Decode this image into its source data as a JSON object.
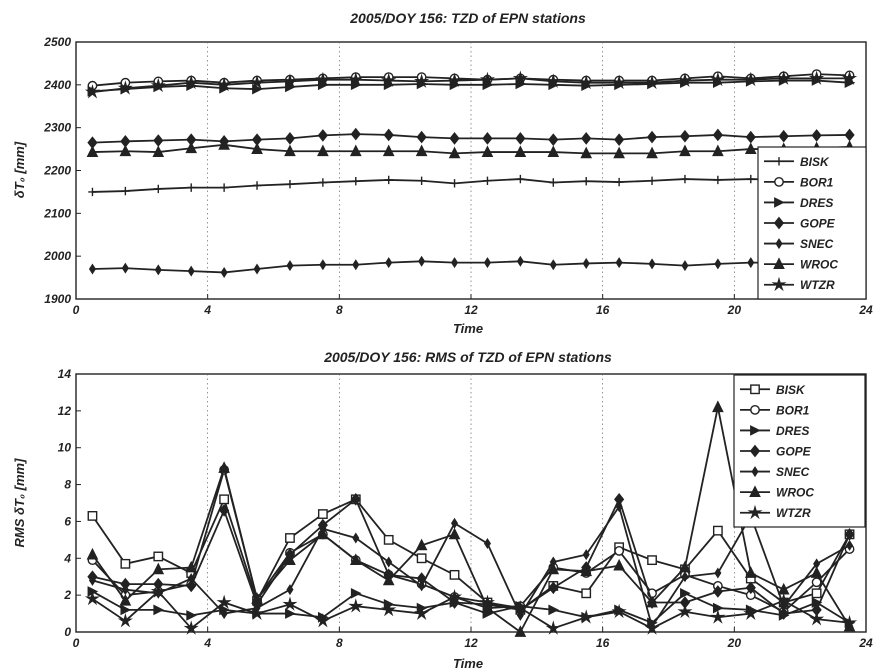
{
  "chart_data": [
    {
      "type": "line",
      "title": "2005/DOY 156: TZD of EPN stations",
      "xlabel": "Time",
      "ylabel": "δT₀ [mm]",
      "xlim": [
        0,
        24
      ],
      "ylim": [
        1900,
        2500
      ],
      "xticks": [
        "0",
        "4",
        "8",
        "12",
        "16",
        "20",
        "24"
      ],
      "yticks": [
        "1900",
        "2000",
        "2100",
        "2200",
        "2300",
        "2400",
        "2500"
      ],
      "grid": "vertical",
      "legend": "right",
      "x": [
        0.5,
        1.5,
        2.5,
        3.5,
        4.5,
        5.5,
        6.5,
        7.5,
        8.5,
        9.5,
        10.5,
        11.5,
        12.5,
        13.5,
        14.5,
        15.5,
        16.5,
        17.5,
        18.5,
        19.5,
        20.5,
        21.5,
        22.5,
        23.5
      ],
      "series": [
        {
          "name": "BISK",
          "marker": "plus",
          "values": [
            2150,
            2152,
            2157,
            2160,
            2160,
            2165,
            2168,
            2172,
            2175,
            2178,
            2176,
            2170,
            2176,
            2180,
            2172,
            2175,
            2173,
            2176,
            2180,
            2178,
            2180,
            2178,
            2180,
            2180
          ]
        },
        {
          "name": "BOR1",
          "marker": "circle",
          "values": [
            2398,
            2405,
            2408,
            2410,
            2405,
            2410,
            2412,
            2415,
            2418,
            2418,
            2418,
            2415,
            2412,
            2415,
            2412,
            2410,
            2410,
            2410,
            2415,
            2420,
            2415,
            2420,
            2425,
            2422
          ]
        },
        {
          "name": "DRES",
          "marker": "triangle-right",
          "values": [
            2385,
            2390,
            2395,
            2398,
            2392,
            2390,
            2395,
            2400,
            2400,
            2400,
            2402,
            2400,
            2400,
            2402,
            2400,
            2398,
            2400,
            2402,
            2405,
            2405,
            2408,
            2410,
            2410,
            2405
          ]
        },
        {
          "name": "GOPE",
          "marker": "diamond",
          "values": [
            2265,
            2268,
            2270,
            2272,
            2268,
            2272,
            2275,
            2282,
            2285,
            2283,
            2278,
            2275,
            2275,
            2275,
            2272,
            2275,
            2272,
            2278,
            2280,
            2283,
            2278,
            2280,
            2282,
            2283
          ]
        },
        {
          "name": "SNEC",
          "marker": "diamond-small",
          "values": [
            1970,
            1972,
            1968,
            1965,
            1962,
            1970,
            1978,
            1980,
            1980,
            1985,
            1988,
            1985,
            1985,
            1988,
            1980,
            1983,
            1985,
            1982,
            1978,
            1982,
            1985,
            1985,
            1985,
            1985
          ]
        },
        {
          "name": "WROC",
          "marker": "triangle-up",
          "values": [
            2243,
            2245,
            2243,
            2252,
            2260,
            2250,
            2245,
            2245,
            2245,
            2245,
            2245,
            2240,
            2243,
            2243,
            2243,
            2240,
            2240,
            2240,
            2245,
            2245,
            2250,
            2250,
            2252,
            2255
          ]
        },
        {
          "name": "WTZR",
          "marker": "star",
          "values": [
            2383,
            2392,
            2398,
            2405,
            2400,
            2405,
            2408,
            2412,
            2412,
            2410,
            2408,
            2410,
            2412,
            2415,
            2408,
            2405,
            2405,
            2405,
            2410,
            2412,
            2412,
            2415,
            2415,
            2415
          ]
        }
      ]
    },
    {
      "type": "line",
      "title": "2005/DOY 156: RMS of TZD of EPN stations",
      "xlabel": "Time",
      "ylabel": "RMS δT₀ [mm]",
      "xlim": [
        0,
        24
      ],
      "ylim": [
        0,
        14
      ],
      "xticks": [
        "0",
        "4",
        "8",
        "12",
        "16",
        "20",
        "24"
      ],
      "yticks": [
        "0",
        "2",
        "4",
        "6",
        "8",
        "10",
        "12",
        "14"
      ],
      "grid": "vertical",
      "legend": "top-right",
      "x": [
        0.5,
        1.5,
        2.5,
        3.5,
        4.5,
        5.5,
        6.5,
        7.5,
        8.5,
        9.5,
        10.5,
        11.5,
        12.5,
        13.5,
        14.5,
        15.5,
        16.5,
        17.5,
        18.5,
        19.5,
        20.5,
        21.5,
        22.5,
        23.5
      ],
      "series": [
        {
          "name": "BISK",
          "marker": "square",
          "values": [
            6.3,
            3.7,
            4.1,
            3.2,
            7.2,
            1.7,
            5.1,
            6.4,
            7.2,
            5.0,
            4.0,
            3.1,
            1.6,
            1.2,
            2.5,
            2.1,
            4.6,
            3.9,
            3.4,
            5.5,
            2.9,
            1.6,
            2.1,
            5.3
          ]
        },
        {
          "name": "BOR1",
          "marker": "circle",
          "values": [
            3.9,
            2.0,
            2.2,
            2.6,
            8.8,
            1.8,
            4.3,
            5.3,
            3.9,
            3.1,
            2.6,
            1.9,
            1.3,
            1.4,
            3.5,
            3.2,
            4.4,
            2.1,
            3.1,
            2.5,
            2.0,
            1.1,
            2.7,
            4.5
          ]
        },
        {
          "name": "DRES",
          "marker": "triangle-right",
          "values": [
            2.2,
            1.2,
            1.2,
            0.9,
            1.2,
            1.0,
            1.0,
            0.8,
            2.1,
            1.5,
            1.3,
            1.6,
            1.0,
            1.4,
            1.2,
            0.8,
            1.2,
            0.5,
            2.1,
            1.3,
            1.2,
            0.9,
            1.6,
            0.5
          ]
        },
        {
          "name": "GOPE",
          "marker": "diamond",
          "values": [
            3.0,
            2.6,
            2.6,
            2.5,
            6.6,
            1.5,
            4.2,
            5.8,
            7.2,
            3.1,
            2.9,
            1.6,
            1.5,
            1.2,
            2.4,
            3.5,
            7.2,
            1.6,
            1.6,
            2.2,
            2.4,
            1.0,
            1.2,
            5.3
          ]
        },
        {
          "name": "SNEC",
          "marker": "diamond-small",
          "values": [
            2.8,
            2.3,
            2.1,
            2.9,
            1.0,
            1.3,
            2.3,
            5.6,
            5.1,
            3.8,
            2.5,
            5.9,
            4.8,
            0.9,
            3.8,
            4.2,
            6.8,
            0.3,
            3.0,
            3.2,
            6.3,
            1.4,
            3.7,
            4.7
          ]
        },
        {
          "name": "WROC",
          "marker": "triangle-up",
          "values": [
            4.2,
            1.7,
            3.4,
            3.5,
            8.9,
            1.8,
            3.9,
            5.3,
            3.9,
            2.8,
            4.7,
            5.3,
            1.3,
            0.0,
            3.4,
            3.3,
            3.6,
            1.6,
            3.5,
            12.2,
            3.2,
            2.3,
            3.2,
            0.3
          ]
        },
        {
          "name": "WTZR",
          "marker": "star",
          "values": [
            1.8,
            0.6,
            2.2,
            0.2,
            1.6,
            1.0,
            1.5,
            0.6,
            1.4,
            1.2,
            1.0,
            1.9,
            1.6,
            1.3,
            0.2,
            0.8,
            1.1,
            0.2,
            1.1,
            0.8,
            1.0,
            1.7,
            0.7,
            0.5
          ]
        }
      ]
    }
  ]
}
